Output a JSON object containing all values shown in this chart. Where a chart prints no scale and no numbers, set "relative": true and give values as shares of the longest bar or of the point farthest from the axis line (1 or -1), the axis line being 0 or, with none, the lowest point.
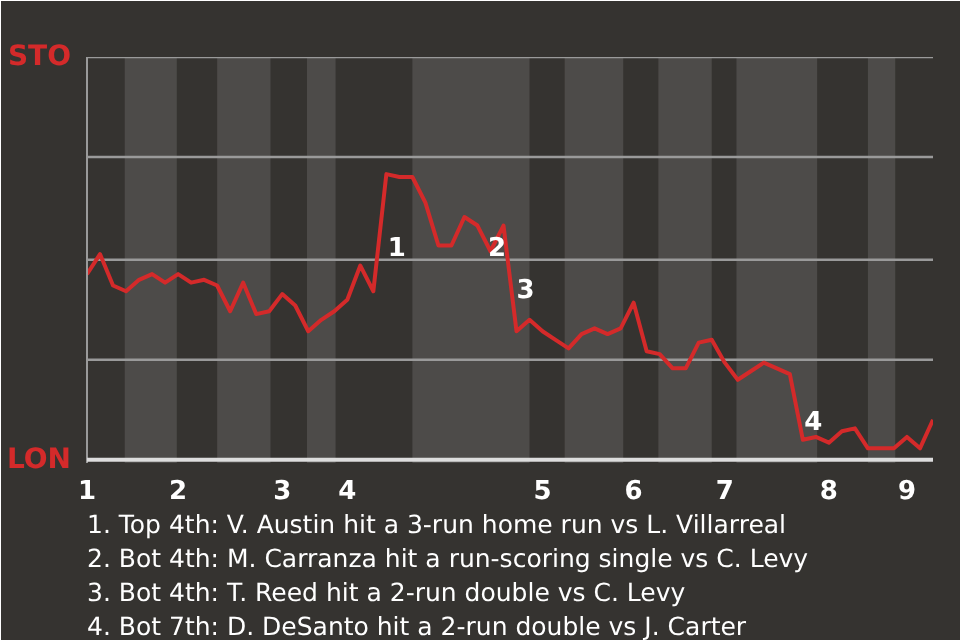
{
  "chart_data": {
    "type": "line",
    "relative": true,
    "categories": [
      "1",
      null,
      null,
      null,
      null,
      null,
      null,
      "2",
      null,
      null,
      null,
      null,
      null,
      null,
      null,
      "3",
      null,
      null,
      null,
      null,
      "4",
      null,
      null,
      null,
      null,
      null,
      null,
      null,
      null,
      null,
      null,
      null,
      null,
      null,
      null,
      "5",
      null,
      null,
      null,
      null,
      null,
      null,
      "6",
      null,
      null,
      null,
      null,
      null,
      null,
      "7",
      null,
      null,
      null,
      null,
      null,
      null,
      null,
      "8",
      null,
      null,
      null,
      null,
      null,
      "9",
      null,
      null
    ],
    "series": [
      {
        "color": "#d42a2a",
        "values": [
          0.65,
          0.72,
          0.61,
          0.59,
          0.63,
          0.65,
          0.62,
          0.65,
          0.62,
          0.63,
          0.61,
          0.52,
          0.62,
          0.51,
          0.52,
          0.58,
          0.54,
          0.45,
          0.49,
          0.52,
          0.56,
          0.68,
          0.59,
          1,
          0.99,
          0.99,
          0.9,
          0.75,
          0.75,
          0.85,
          0.82,
          0.73,
          0.82,
          0.45,
          0.49,
          0.45,
          0.42,
          0.39,
          0.44,
          0.46,
          0.44,
          0.46,
          0.55,
          0.38,
          0.37,
          0.32,
          0.32,
          0.41,
          0.42,
          0.34,
          0.28,
          0.31,
          0.34,
          0.32,
          0.3,
          0.07,
          0.08,
          0.06,
          0.1,
          0.11,
          0.04,
          0.04,
          0.04,
          0.08,
          0.04,
          0.14
        ],
        "line_style": "solid"
      }
    ],
    "ref_lines": [
      {
        "axis": "y",
        "value": 1.41,
        "label": "STO",
        "color": "#9a9a9a"
      },
      {
        "axis": "y",
        "value": 1.06,
        "label": null,
        "color": "#9a9a9a"
      },
      {
        "axis": "y",
        "value": 0.7,
        "label": null,
        "color": "#9a9a9a"
      },
      {
        "axis": "y",
        "value": 0.35,
        "label": null,
        "color": "#9a9a9a"
      },
      {
        "axis": "y",
        "value": 0,
        "label": "LON",
        "color": "#dddddd"
      }
    ],
    "annotations": [
      "1",
      "2",
      "3",
      "4",
      "1. Top 4th: V. Austin hit a 3-run home run vs L. Villarreal",
      "2. Bot 4th: M. Carranza hit a run-scoring single vs C. Levy",
      "3. Bot 4th: T. Reed hit a 2-run double vs C. Levy",
      "4. Bot 7th: D. DeSanto hit a 2-run double vs J. Carter"
    ]
  }
}
